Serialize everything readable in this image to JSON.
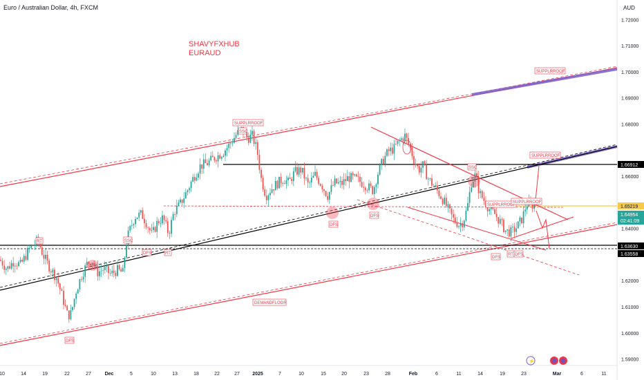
{
  "header": {
    "title": "Euro / Australian Dollar, 4h, FXCM",
    "currency": "AUD"
  },
  "watermark": {
    "line1": "SHAVYFXHUB",
    "line2": "EURAUD"
  },
  "colors": {
    "up": "#26a69a",
    "down": "#ef5350",
    "channel": "#f23645",
    "trend": "#000000",
    "purple": "#7b5cc9",
    "label": "#f23645",
    "yellow": "#f7c948"
  },
  "price_axis": {
    "ticks": [
      "1.72000",
      "1.71000",
      "1.70000",
      "1.69000",
      "1.68000",
      "1.66000",
      "1.64000",
      "1.63000",
      "1.62000",
      "1.61000",
      "1.60000",
      "1.59000"
    ],
    "badges": {
      "level_669": "1.66912",
      "level_652": "1.65219",
      "last_price": "1.64954",
      "countdown": "02:41:09",
      "level_636": "1.63630",
      "level_635": "1.63558"
    }
  },
  "time_axis": {
    "ticks": [
      "10",
      "14",
      "19",
      "22",
      "27",
      "Dec",
      "5",
      "10",
      "13",
      "18",
      "22",
      "27",
      "2025",
      "7",
      "10",
      "15",
      "20",
      "23",
      "28",
      "Feb",
      "6",
      "11",
      "14",
      "19",
      "23",
      "Mar",
      "6",
      "11"
    ]
  },
  "annotations": {
    "supply_roof": "SUPPLRROOF",
    "demand_floor": "DEMANDFLOOR",
    "ssc": "SSC",
    "dfs": "DFS",
    "rt": "RT"
  },
  "bottom_icons": [
    "lightning-icon",
    "alert-icon",
    "alert-icon"
  ],
  "chart_data": {
    "type": "candlestick",
    "title": "Euro / Australian Dollar, 4h, FXCM",
    "currency": "AUD",
    "ylim": [
      1.5875,
      1.7275
    ],
    "grid": false,
    "x_ticks": [
      "10",
      "14",
      "19",
      "22",
      "27",
      "Dec",
      "5",
      "10",
      "13",
      "18",
      "22",
      "27",
      "2025",
      "7",
      "10",
      "15",
      "20",
      "23",
      "28",
      "Feb",
      "6",
      "11",
      "14",
      "19",
      "23",
      "Mar",
      "6",
      "11"
    ],
    "y_ticks": [
      1.72,
      1.71,
      1.7,
      1.69,
      1.68,
      1.66,
      1.64,
      1.63,
      1.62,
      1.61,
      1.6,
      1.59
    ],
    "close_path": [
      [
        0,
        1.628
      ],
      [
        10,
        1.6245
      ],
      [
        20,
        1.6275
      ],
      [
        30,
        1.626
      ],
      [
        42,
        1.632
      ],
      [
        55,
        1.6355
      ],
      [
        62,
        1.63
      ],
      [
        72,
        1.625
      ],
      [
        82,
        1.621
      ],
      [
        90,
        1.614
      ],
      [
        98,
        1.6065
      ],
      [
        103,
        1.6075
      ],
      [
        110,
        1.616
      ],
      [
        118,
        1.622
      ],
      [
        126,
        1.6265
      ],
      [
        133,
        1.628
      ],
      [
        140,
        1.623
      ],
      [
        150,
        1.6245
      ],
      [
        160,
        1.6225
      ],
      [
        170,
        1.624
      ],
      [
        178,
        1.623
      ],
      [
        182,
        1.6335
      ],
      [
        186,
        1.638
      ],
      [
        195,
        1.6445
      ],
      [
        205,
        1.6455
      ],
      [
        212,
        1.642
      ],
      [
        220,
        1.6375
      ],
      [
        228,
        1.6425
      ],
      [
        236,
        1.644
      ],
      [
        244,
        1.638
      ],
      [
        252,
        1.6465
      ],
      [
        260,
        1.649
      ],
      [
        270,
        1.654
      ],
      [
        280,
        1.6595
      ],
      [
        290,
        1.664
      ],
      [
        300,
        1.665
      ],
      [
        310,
        1.667
      ],
      [
        322,
        1.669
      ],
      [
        332,
        1.672
      ],
      [
        342,
        1.676
      ],
      [
        350,
        1.678
      ],
      [
        358,
        1.6745
      ],
      [
        365,
        1.6755
      ],
      [
        372,
        1.67
      ],
      [
        378,
        1.659
      ],
      [
        385,
        1.6525
      ],
      [
        392,
        1.655
      ],
      [
        400,
        1.657
      ],
      [
        410,
        1.659
      ],
      [
        418,
        1.6575
      ],
      [
        426,
        1.6615
      ],
      [
        436,
        1.6625
      ],
      [
        446,
        1.6565
      ],
      [
        456,
        1.6605
      ],
      [
        466,
        1.6565
      ],
      [
        474,
        1.6525
      ],
      [
        484,
        1.6575
      ],
      [
        494,
        1.657
      ],
      [
        504,
        1.6595
      ],
      [
        514,
        1.659
      ],
      [
        524,
        1.6575
      ],
      [
        532,
        1.656
      ],
      [
        540,
        1.6545
      ],
      [
        546,
        1.6605
      ],
      [
        554,
        1.666
      ],
      [
        562,
        1.6695
      ],
      [
        570,
        1.6705
      ],
      [
        578,
        1.6735
      ],
      [
        586,
        1.6755
      ],
      [
        594,
        1.6705
      ],
      [
        600,
        1.6655
      ],
      [
        606,
        1.6625
      ],
      [
        612,
        1.664
      ],
      [
        620,
        1.659
      ],
      [
        630,
        1.6555
      ],
      [
        640,
        1.6515
      ],
      [
        648,
        1.6475
      ],
      [
        656,
        1.6435
      ],
      [
        664,
        1.6415
      ],
      [
        670,
        1.6425
      ],
      [
        676,
        1.6475
      ],
      [
        682,
        1.6575
      ],
      [
        688,
        1.6605
      ],
      [
        694,
        1.6535
      ],
      [
        700,
        1.651
      ],
      [
        708,
        1.6475
      ],
      [
        716,
        1.6455
      ],
      [
        724,
        1.6425
      ],
      [
        732,
        1.639
      ],
      [
        740,
        1.6385
      ],
      [
        748,
        1.6405
      ],
      [
        756,
        1.644
      ],
      [
        762,
        1.6495
      ],
      [
        768,
        1.6485
      ],
      [
        774,
        1.6495
      ]
    ]
  }
}
